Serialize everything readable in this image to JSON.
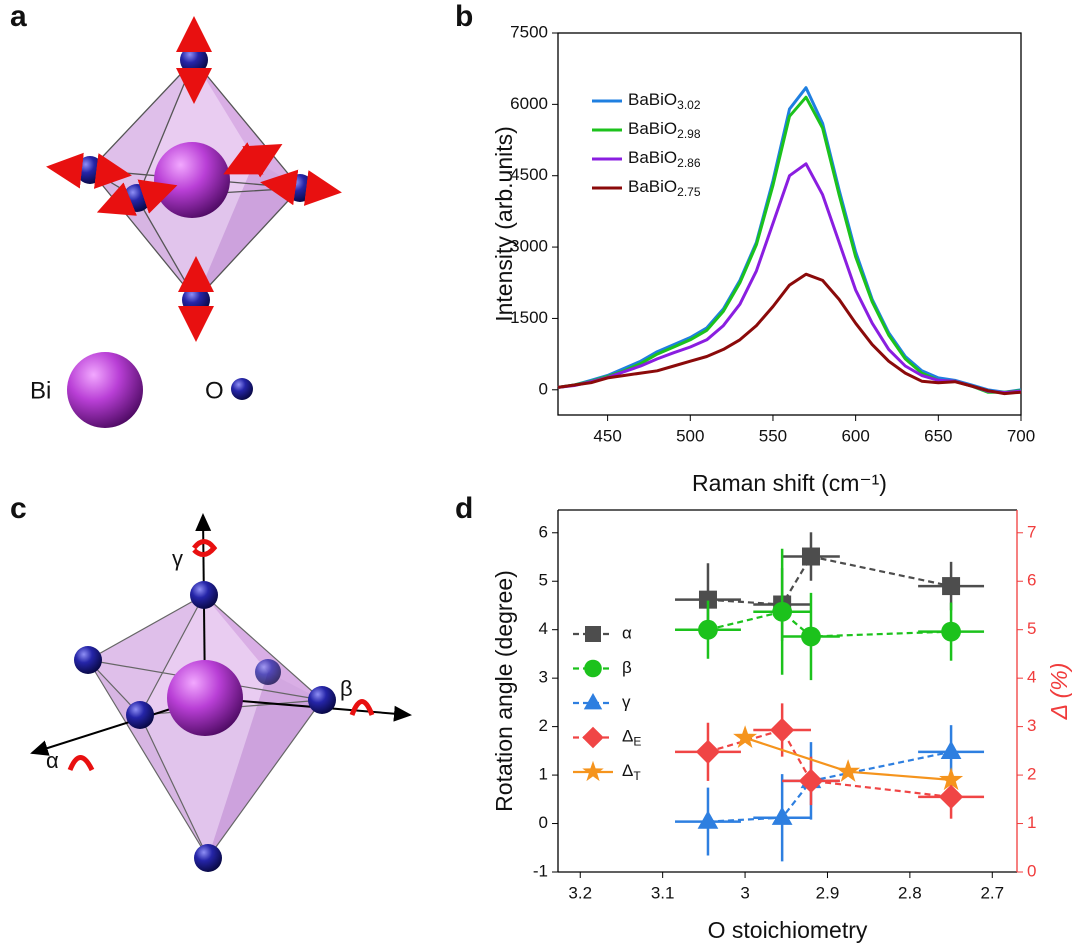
{
  "panel_labels": [
    "a",
    "b",
    "c",
    "d"
  ],
  "diagram_a": {
    "atoms": [
      "Bi",
      "O"
    ]
  },
  "diagram_c": {
    "axes": [
      "γ",
      "β",
      "α"
    ]
  },
  "chart_data": [
    {
      "type": "line",
      "xlabel": "Raman shift (cm⁻¹)",
      "ylabel": "Intensity (arb.units)",
      "x": [
        420,
        430,
        440,
        450,
        460,
        470,
        480,
        490,
        500,
        510,
        520,
        530,
        540,
        550,
        560,
        570,
        580,
        590,
        600,
        610,
        620,
        630,
        640,
        650,
        660,
        670,
        680,
        690,
        700
      ],
      "xlim": [
        420,
        700
      ],
      "xticks": [
        450,
        500,
        550,
        600,
        650,
        700
      ],
      "ylim": [
        -530,
        7500
      ],
      "yticks": [
        0,
        1500,
        3000,
        4500,
        6000,
        7500
      ],
      "series": [
        {
          "name": "BaBiO3.02",
          "color": "#1f7fe0",
          "values": [
            50,
            100,
            200,
            300,
            450,
            600,
            800,
            950,
            1100,
            1300,
            1700,
            2300,
            3100,
            4400,
            5900,
            6350,
            5600,
            4200,
            2900,
            1900,
            1200,
            700,
            400,
            250,
            200,
            100,
            0,
            -50,
            0
          ]
        },
        {
          "name": "BaBiO2.98",
          "color": "#1cc21c",
          "values": [
            50,
            100,
            180,
            280,
            400,
            550,
            750,
            900,
            1050,
            1250,
            1650,
            2250,
            3050,
            4300,
            5750,
            6150,
            5500,
            4100,
            2800,
            1850,
            1150,
            650,
            350,
            200,
            180,
            80,
            -50,
            -50,
            -20
          ]
        },
        {
          "name": "BaBiO2.86",
          "color": "#8a1ee0",
          "values": [
            50,
            90,
            170,
            260,
            380,
            500,
            650,
            780,
            900,
            1050,
            1350,
            1800,
            2500,
            3500,
            4500,
            4750,
            4100,
            3100,
            2100,
            1400,
            850,
            500,
            300,
            200,
            180,
            80,
            -30,
            -60,
            -30
          ]
        },
        {
          "name": "BaBiO2.75",
          "color": "#8b0a0a",
          "values": [
            50,
            100,
            150,
            250,
            300,
            350,
            400,
            500,
            600,
            700,
            850,
            1050,
            1350,
            1750,
            2200,
            2430,
            2300,
            1900,
            1400,
            950,
            600,
            350,
            180,
            150,
            170,
            80,
            -20,
            -80,
            -50
          ]
        }
      ]
    },
    {
      "type": "errorbar",
      "xlabel": "O stoichiometry",
      "ylabel": "Rotation angle (degree)",
      "y2label": "Δ (%)",
      "xlim": [
        3.227,
        2.67
      ],
      "xticks": [
        3.2,
        3.1,
        3.0,
        2.9,
        2.8,
        2.7
      ],
      "ylim": [
        -1,
        6.47
      ],
      "yticks": [
        -1,
        0,
        1,
        2,
        3,
        4,
        5,
        6
      ],
      "y2lim": [
        0,
        7.47
      ],
      "y2ticks": [
        0,
        1,
        2,
        3,
        4,
        5,
        6,
        7
      ],
      "y2color": "#f03c3c",
      "series": [
        {
          "name": "α",
          "color": "#4d4d4d",
          "marker": "square",
          "dashed": true,
          "x": [
            3.045,
            2.955,
            2.92,
            2.75
          ],
          "values": [
            4.62,
            4.52,
            5.51,
            4.9
          ],
          "yerr": [
            0.75,
            0.75,
            0.5,
            0.5
          ],
          "xerr": [
            0.04,
            0.035,
            0.035,
            0.04
          ]
        },
        {
          "name": "β",
          "color": "#1cc21c",
          "marker": "circle",
          "dashed": true,
          "x": [
            3.045,
            2.955,
            2.92,
            2.75
          ],
          "values": [
            4.0,
            4.37,
            3.86,
            3.96
          ],
          "yerr": [
            0.6,
            1.3,
            0.9,
            0.6
          ],
          "xerr": [
            0.04,
            0.035,
            0.035,
            0.04
          ]
        },
        {
          "name": "γ",
          "color": "#2e7fe0",
          "marker": "triangle",
          "dashed": true,
          "x": [
            3.045,
            2.955,
            2.92,
            2.75
          ],
          "values": [
            0.04,
            0.12,
            0.88,
            1.48
          ],
          "yerr": [
            0.7,
            0.9,
            0.8,
            0.55
          ],
          "xerr": [
            0.04,
            0.035,
            0.035,
            0.04
          ]
        },
        {
          "name": "ΔE",
          "color": "#f04545",
          "marker": "diamond",
          "dashed": true,
          "axis": "y2",
          "x": [
            3.045,
            2.955,
            2.92,
            2.75
          ],
          "values": [
            2.48,
            2.93,
            1.88,
            1.55
          ],
          "yerr": [
            0.6,
            0.55,
            0.5,
            0.45
          ],
          "xerr": [
            0.04,
            0.035,
            0.035,
            0.04
          ]
        },
        {
          "name": "ΔT",
          "color": "#f5941d",
          "marker": "star",
          "dashed": false,
          "axis": "y2",
          "x": [
            3.0,
            2.875,
            2.75
          ],
          "values": [
            2.77,
            2.07,
            1.9
          ]
        }
      ]
    }
  ]
}
